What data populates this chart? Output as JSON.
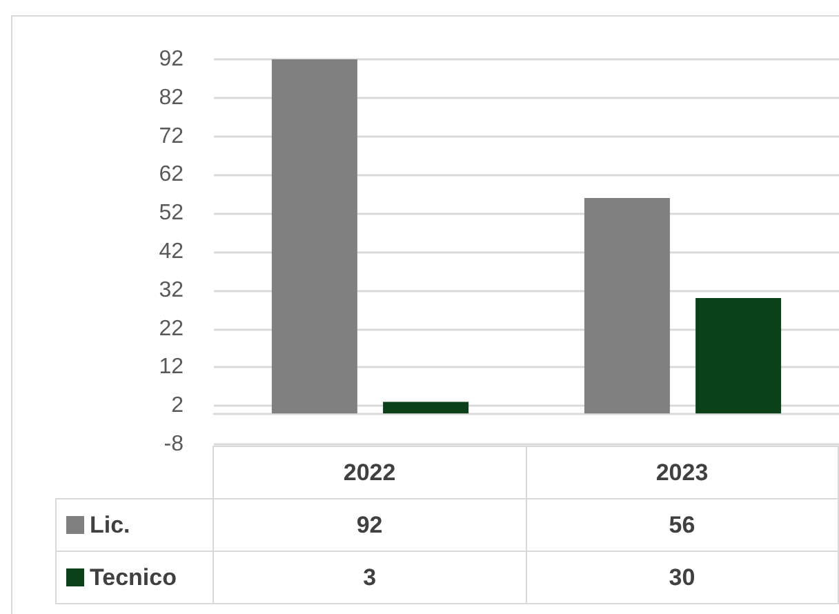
{
  "chart_data": {
    "type": "bar",
    "categories": [
      "2022",
      "2023"
    ],
    "series": [
      {
        "name": "Lic.",
        "color": "#808080",
        "values": [
          92,
          56
        ]
      },
      {
        "name": "Tecnico",
        "color": "#0b4119",
        "values": [
          3,
          30
        ]
      }
    ],
    "ylim": [
      -8,
      92
    ],
    "yticks": [
      -8,
      2,
      12,
      22,
      32,
      42,
      52,
      62,
      72,
      82,
      92
    ],
    "grid": "y",
    "legend": "bottom",
    "data_labels": true
  }
}
